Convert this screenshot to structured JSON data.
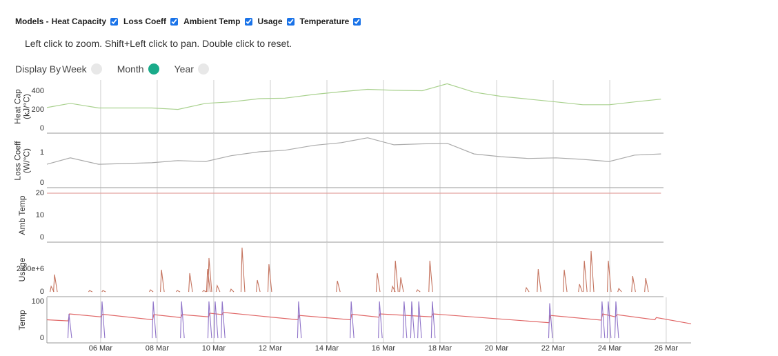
{
  "models_title": "Models -",
  "models": [
    {
      "label": "Heat Capacity",
      "checked": true
    },
    {
      "label": "Loss Coeff",
      "checked": true
    },
    {
      "label": "Ambient Temp",
      "checked": true
    },
    {
      "label": "Usage",
      "checked": true
    },
    {
      "label": "Temperature",
      "checked": true
    }
  ],
  "hint": "Left click to zoom. Shift+Left click to pan. Double click to reset.",
  "display_by": {
    "label": "Display By",
    "options": [
      {
        "label": "Week",
        "selected": false
      },
      {
        "label": "Month",
        "selected": true
      },
      {
        "label": "Year",
        "selected": false
      }
    ]
  },
  "chart_data": [
    {
      "type": "line",
      "ylabel": [
        "Heat Cap",
        "(kJ/°C)"
      ],
      "xlim": [
        4.1,
        25.9
      ],
      "ylim": [
        -50,
        520
      ],
      "yticks": [
        0,
        200,
        400
      ],
      "xticks": [
        6,
        8,
        10,
        12,
        14,
        16,
        18,
        20,
        22,
        24
      ],
      "grid": true,
      "series": [
        {
          "color": "#a9d18e",
          "x": [
            4.1,
            4.93,
            5.93,
            7.81,
            8.73,
            9.71,
            10.61,
            11.61,
            12.51,
            13.54,
            14.51,
            15.44,
            16.37,
            17.37,
            18.25,
            19.2,
            20.15,
            21.12,
            22.1,
            23.05,
            23.98,
            24.88,
            25.81
          ],
          "values": [
            225,
            270,
            220,
            220,
            205,
            270,
            285,
            320,
            325,
            365,
            395,
            420,
            410,
            405,
            480,
            390,
            345,
            315,
            285,
            255,
            255,
            285,
            315
          ]
        }
      ]
    },
    {
      "type": "line",
      "ylabel": [
        "Loss Coeff",
        "(W/°C)"
      ],
      "xlim": [
        4.1,
        25.9
      ],
      "ylim": [
        -0.16,
        1.61
      ],
      "yticks": [
        0,
        1
      ],
      "xticks": [
        6,
        8,
        10,
        12,
        14,
        16,
        18,
        20,
        22,
        24
      ],
      "grid": true,
      "series": [
        {
          "color": "#aaaaaa",
          "x": [
            4.1,
            4.93,
            5.93,
            7.81,
            8.73,
            9.71,
            10.61,
            11.61,
            12.51,
            13.54,
            14.51,
            15.44,
            16.37,
            17.37,
            18.25,
            19.2,
            20.15,
            21.12,
            22.1,
            23.05,
            23.98,
            24.88,
            25.81
          ],
          "values": [
            0.61,
            0.82,
            0.61,
            0.66,
            0.73,
            0.7,
            0.89,
            1.02,
            1.07,
            1.23,
            1.32,
            1.48,
            1.25,
            1.28,
            1.3,
            0.95,
            0.86,
            0.8,
            0.82,
            0.77,
            0.7,
            0.91,
            0.95
          ]
        }
      ]
    },
    {
      "type": "line",
      "ylabel": [
        "Amb Temp"
      ],
      "xlim": [
        4.1,
        25.9
      ],
      "ylim": [
        -2.2,
        22.2
      ],
      "yticks": [
        0,
        10,
        20
      ],
      "xticks": [
        6,
        8,
        10,
        12,
        14,
        16,
        18,
        20,
        22,
        24
      ],
      "grid": true,
      "series": [
        {
          "color": "#e3a3a0",
          "x": [
            4.1,
            25.81
          ],
          "values": [
            20,
            20
          ]
        }
      ]
    },
    {
      "type": "spike",
      "ylabel": [
        "Usage"
      ],
      "xlim": [
        4.1,
        25.9
      ],
      "ylim": [
        -420000,
        4300000
      ],
      "yticks": [
        0,
        {
          "value": 2000000,
          "label": "2.00e+6"
        }
      ],
      "xticks": [
        6,
        8,
        10,
        12,
        14,
        16,
        18,
        20,
        22,
        24
      ],
      "grid": true,
      "series": [
        {
          "color": "#c4735e",
          "x": [
            4.25,
            4.37,
            5.61,
            6.08,
            7.76,
            8.15,
            8.71,
            9.15,
            9.64,
            9.78,
            9.83,
            10.12,
            10.61,
            11.0,
            11.54,
            11.95,
            14.37,
            15.78,
            16.32,
            16.42,
            16.61,
            17.2,
            17.64,
            21.05,
            21.47,
            22.39,
            22.93,
            23.1,
            23.34,
            23.95,
            24.32,
            24.81,
            25.27
          ],
          "values": [
            485000,
            1520000,
            120000,
            120000,
            180000,
            1940000,
            120000,
            1640000,
            120000,
            2000000,
            2970000,
            550000,
            240000,
            3880000,
            1030000,
            2420000,
            970000,
            1640000,
            480000,
            2730000,
            1270000,
            180000,
            2730000,
            360000,
            2000000,
            1940000,
            670000,
            2730000,
            3580000,
            2730000,
            300000,
            1390000,
            1210000
          ]
        }
      ]
    },
    {
      "type": "line",
      "ylabel": [
        "Temp"
      ],
      "xlim": [
        4.1,
        26.88
      ],
      "ylim": [
        -13,
        111
      ],
      "yticks": [
        0,
        100
      ],
      "xticks": [
        {
          "value": 6,
          "label": "06 Mar"
        },
        {
          "value": 8,
          "label": "08 Mar"
        },
        {
          "value": 10,
          "label": "10 Mar"
        },
        {
          "value": 12,
          "label": "12 Mar"
        },
        {
          "value": 14,
          "label": "14 Mar"
        },
        {
          "value": 16,
          "label": "16 Mar"
        },
        {
          "value": 18,
          "label": "18 Mar"
        },
        {
          "value": 20,
          "label": "20 Mar"
        },
        {
          "value": 22,
          "label": "22 Mar"
        },
        {
          "value": 24,
          "label": "24 Mar"
        },
        {
          "value": 26,
          "label": "26 Mar"
        }
      ],
      "grid": true,
      "series": [
        {
          "color": "#e06666",
          "x": [
            4.1,
            4.85,
            4.9,
            6.0,
            6.07,
            7.84,
            7.88,
            8.84,
            8.88,
            9.82,
            9.85,
            10.3,
            10.33,
            12.98,
            13.02,
            14.84,
            14.88,
            15.84,
            15.88,
            17.7,
            17.75,
            21.86,
            21.9,
            23.7,
            23.75,
            24.2,
            24.25,
            25.6,
            25.65,
            26.88
          ],
          "values": [
            50,
            47,
            66,
            58,
            65,
            50,
            64,
            56,
            64,
            58,
            68,
            64,
            70,
            50,
            62,
            50,
            65,
            57,
            66,
            58,
            66,
            42,
            62,
            49,
            66,
            58,
            64,
            50,
            56,
            39
          ]
        },
        {
          "color": "#8e72c8",
          "type": "spike",
          "x": [
            4.88,
            6.05,
            7.86,
            8.86,
            9.83,
            10.05,
            10.3,
            13.0,
            14.86,
            15.86,
            16.73,
            17.0,
            17.25,
            17.73,
            21.88,
            23.73,
            23.95,
            24.22
          ],
          "values": [
            66,
            100,
            100,
            100,
            100,
            100,
            100,
            100,
            100,
            100,
            100,
            100,
            100,
            100,
            95,
            100,
            100,
            100
          ]
        }
      ]
    }
  ]
}
